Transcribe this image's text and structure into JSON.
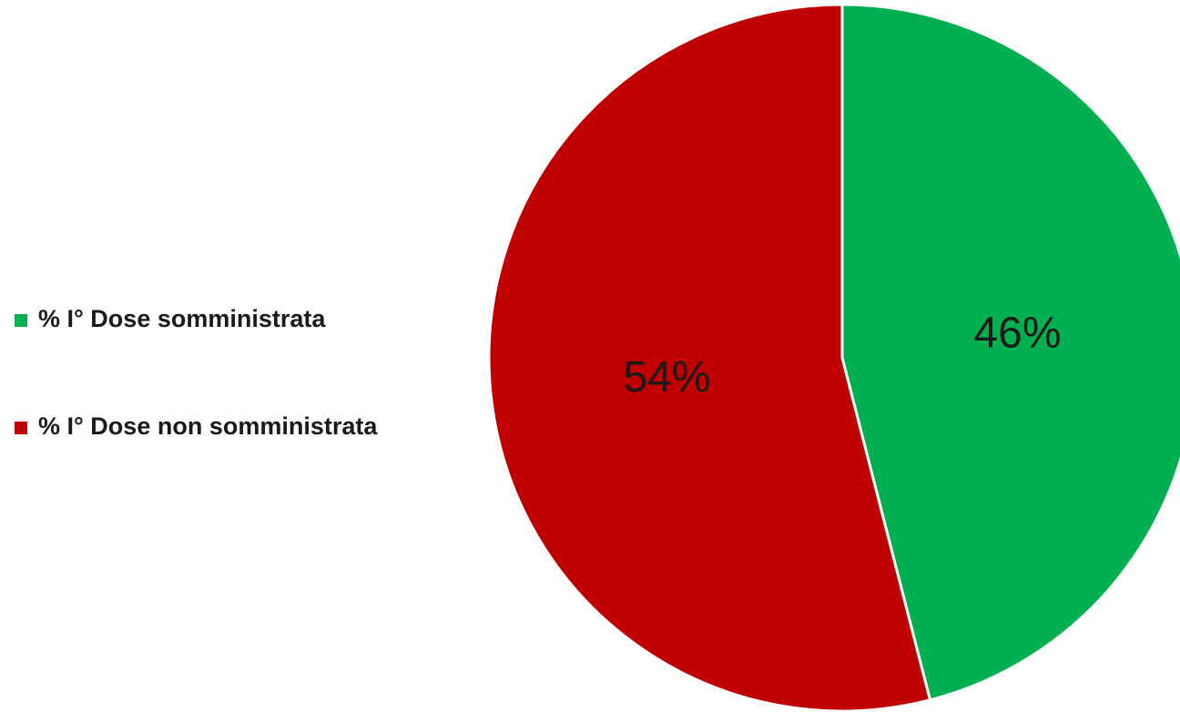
{
  "chart_data": {
    "type": "pie",
    "categories": [
      "% I° Dose somministrata",
      "% I° Dose non somministrata"
    ],
    "values": [
      46,
      54
    ],
    "value_labels": [
      "46%",
      "54%"
    ],
    "colors": [
      "#00b050",
      "#c00000"
    ],
    "legend": "left"
  }
}
